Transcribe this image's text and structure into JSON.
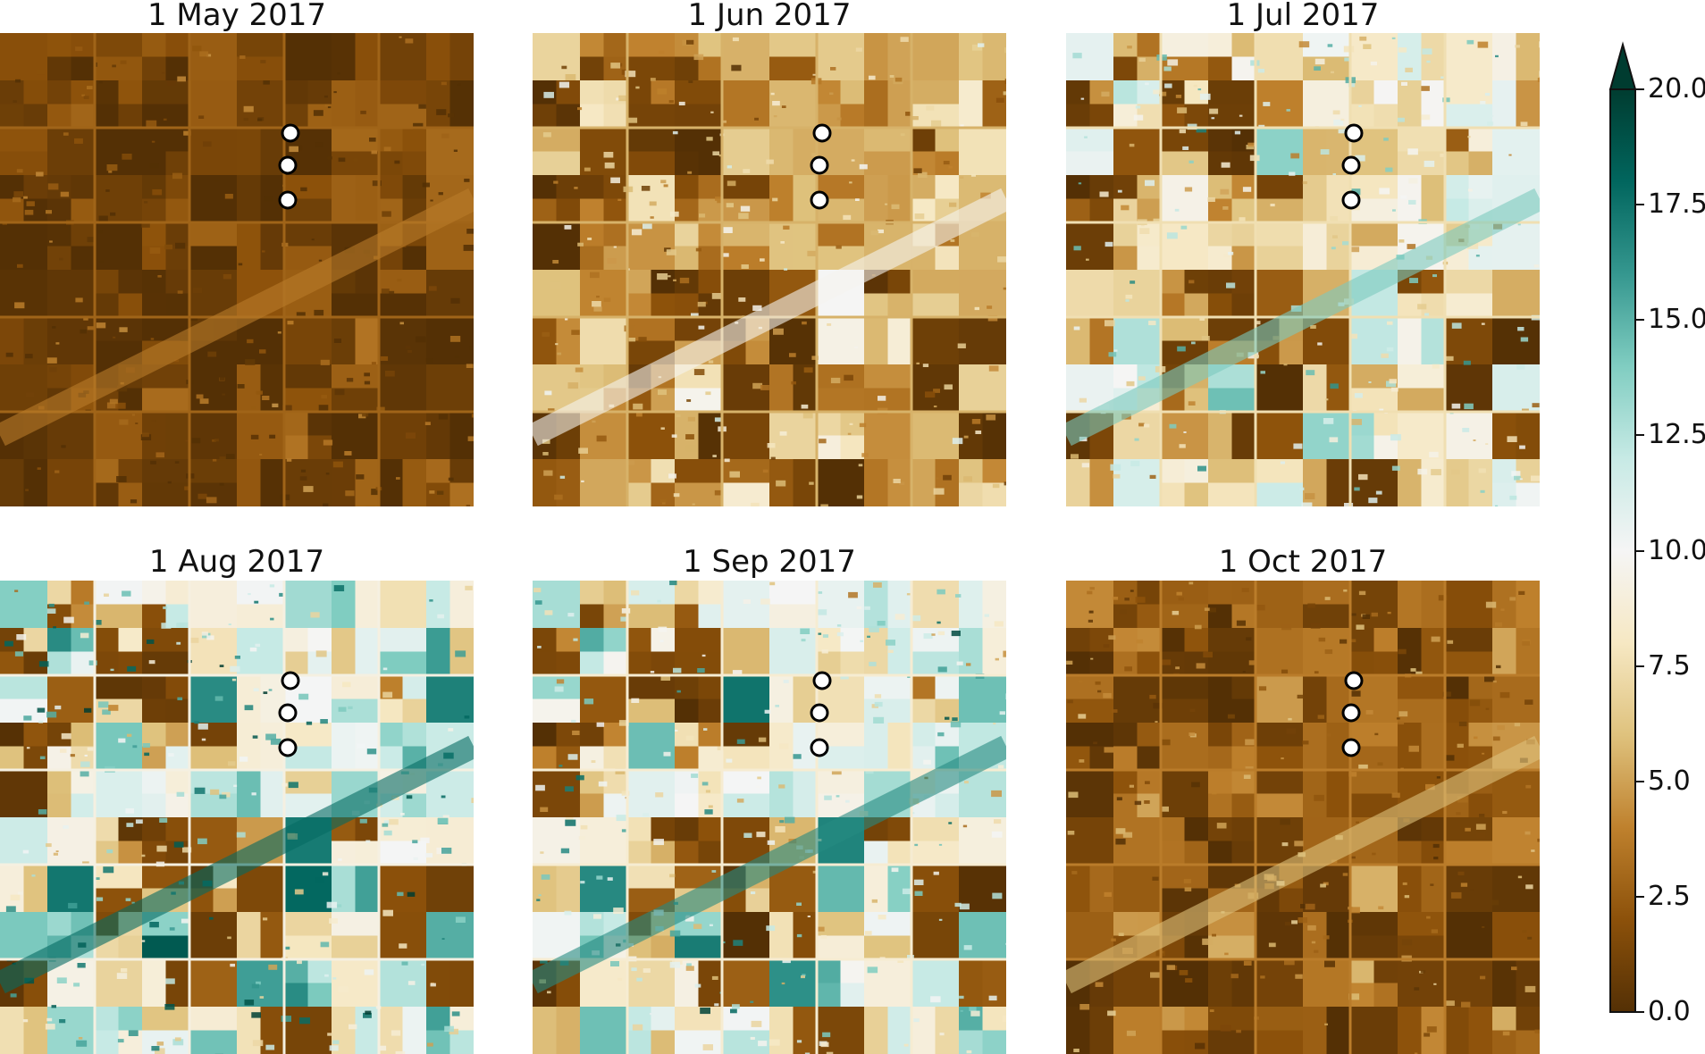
{
  "panels": [
    {
      "title": "1 May 2017",
      "level": 0.08
    },
    {
      "title": "1 Jun 2017",
      "level": 0.35
    },
    {
      "title": "1 Jul 2017",
      "level": 0.55
    },
    {
      "title": "1 Aug 2017",
      "level": 0.72
    },
    {
      "title": "1 Sep 2017",
      "level": 0.66
    },
    {
      "title": "1 Oct 2017",
      "level": 0.18
    }
  ],
  "markers_per_panel": 3,
  "colorbar": {
    "min": 0.0,
    "max": 20.0,
    "extend": "max",
    "ticks": [
      "0.0",
      "2.5",
      "5.0",
      "7.5",
      "10.0",
      "12.5",
      "15.0",
      "17.5",
      "20.0"
    ],
    "colormap": [
      "#543005",
      "#8c510a",
      "#bf812d",
      "#dfc27d",
      "#f6e8c3",
      "#f5f5f5",
      "#c7eae5",
      "#80cdc1",
      "#35978f",
      "#01665e",
      "#003c30"
    ]
  }
}
